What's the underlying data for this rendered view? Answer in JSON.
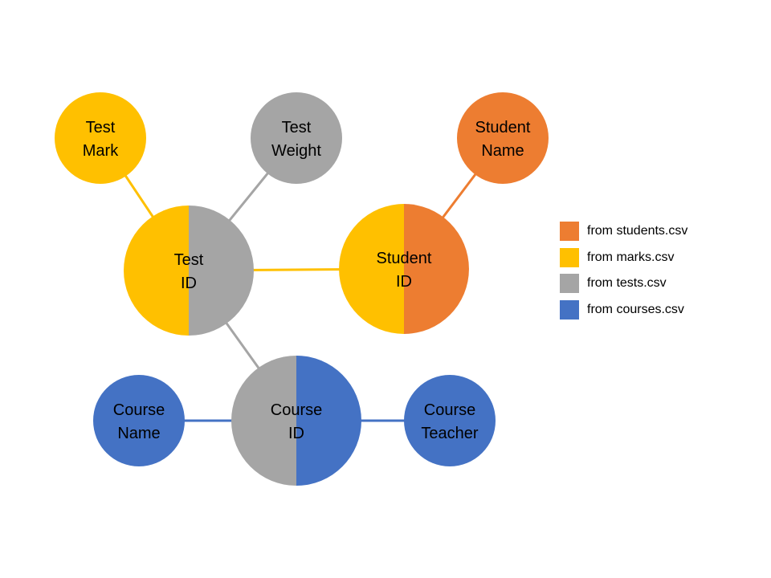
{
  "colors": {
    "orange": "#ED7D31",
    "yellow": "#FFC000",
    "gray": "#A5A5A5",
    "blue": "#4472C4"
  },
  "nodes": {
    "test_mark": {
      "line1": "Test",
      "line2": "Mark",
      "color": "yellow"
    },
    "test_weight": {
      "line1": "Test",
      "line2": "Weight",
      "color": "gray"
    },
    "student_name": {
      "line1": "Student",
      "line2": "Name",
      "color": "orange"
    },
    "test_id": {
      "line1": "Test",
      "line2": "ID",
      "left_color": "yellow",
      "right_color": "gray"
    },
    "student_id": {
      "line1": "Student",
      "line2": "ID",
      "left_color": "yellow",
      "right_color": "orange"
    },
    "course_id": {
      "line1": "Course",
      "line2": "ID",
      "left_color": "gray",
      "right_color": "blue"
    },
    "course_name": {
      "line1": "Course",
      "line2": "Name",
      "color": "blue"
    },
    "course_teacher": {
      "line1": "Course",
      "line2": "Teacher",
      "color": "blue"
    }
  },
  "edges": [
    {
      "from": "test_mark",
      "to": "test_id",
      "color": "yellow"
    },
    {
      "from": "test_weight",
      "to": "test_id",
      "color": "gray"
    },
    {
      "from": "test_id",
      "to": "student_id",
      "color": "yellow"
    },
    {
      "from": "student_name",
      "to": "student_id",
      "color": "orange"
    },
    {
      "from": "test_id",
      "to": "course_id",
      "color": "gray"
    },
    {
      "from": "course_name",
      "to": "course_id",
      "color": "blue"
    },
    {
      "from": "course_id",
      "to": "course_teacher",
      "color": "blue"
    }
  ],
  "legend": [
    {
      "label": "from students.csv",
      "color": "orange"
    },
    {
      "label": "from marks.csv",
      "color": "yellow"
    },
    {
      "label": "from tests.csv",
      "color": "gray"
    },
    {
      "label": "from courses.csv",
      "color": "blue"
    }
  ]
}
